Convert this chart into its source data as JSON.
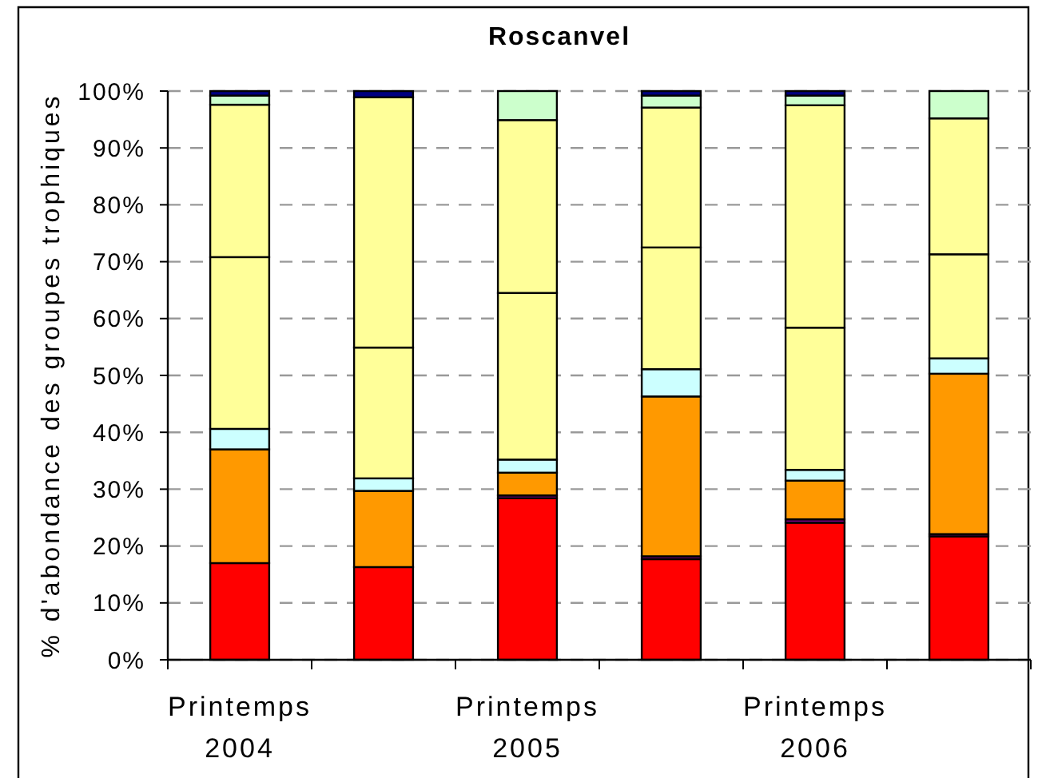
{
  "chart_data": {
    "type": "bar",
    "title": "Roscanvel",
    "ylabel": "% d'abondance des groupes trophiques",
    "categories": [
      "Printemps 2004",
      null,
      "Printemps 2005",
      null,
      "Printemps 2006",
      null
    ],
    "stacked": true,
    "series": [
      {
        "color": "#ff0000",
        "values": [
          17,
          16.3,
          28.4,
          17.7,
          24.1,
          21.7
        ]
      },
      {
        "color": "#800080",
        "values": [
          null,
          null,
          0.5,
          0.5,
          0.6,
          0.4
        ]
      },
      {
        "color": "#ff9900",
        "values": [
          20,
          13.4,
          4,
          28.1,
          6.8,
          28.2
        ]
      },
      {
        "color": "#ccffff",
        "values": [
          3.6,
          2.2,
          2.3,
          4.8,
          1.9,
          2.7
        ]
      },
      {
        "color": "#ffff99",
        "values": [
          30.2,
          23,
          29.3,
          21.4,
          25,
          18.3
        ]
      },
      {
        "color": "#ffff99",
        "values": [
          26.8,
          44,
          30.4,
          24.6,
          39.1,
          23.9
        ]
      },
      {
        "color": "#ccffcc",
        "values": [
          1.6,
          null,
          5.1,
          2.1,
          1.7,
          4.8
        ]
      },
      {
        "color": "#000080",
        "values": [
          0.8,
          1.1,
          null,
          0.8,
          0.8,
          null
        ]
      }
    ],
    "ylim": [
      0,
      100
    ],
    "yticks": [
      {
        "value": 0,
        "label": "0%"
      },
      {
        "value": 10,
        "label": "10%"
      },
      {
        "value": 20,
        "label": "20%"
      },
      {
        "value": 30,
        "label": "30%"
      },
      {
        "value": 40,
        "label": "40%"
      },
      {
        "value": 50,
        "label": "50%"
      },
      {
        "value": 60,
        "label": "60%"
      },
      {
        "value": 70,
        "label": "70%"
      },
      {
        "value": 80,
        "label": "80%"
      },
      {
        "value": 90,
        "label": "90%"
      },
      {
        "value": 100,
        "label": "100%"
      }
    ],
    "grid": "y"
  }
}
